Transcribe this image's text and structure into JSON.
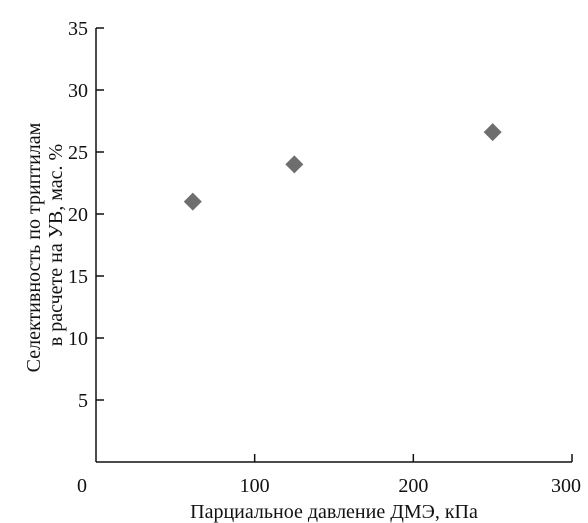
{
  "chart_data": {
    "type": "scatter",
    "title": "",
    "xlabel": "Парциальное давление ДМЭ, кПа",
    "ylabel_lines": [
      "Селективность по триптилам",
      "в расчете на УВ, мас. %"
    ],
    "xlim": [
      0,
      300
    ],
    "ylim": [
      0,
      35
    ],
    "x_ticks": [
      0,
      100,
      200,
      300
    ],
    "x_tick_labels": [
      "0",
      "100",
      "200",
      "300"
    ],
    "y_ticks": [
      5,
      10,
      15,
      20,
      25,
      30,
      35
    ],
    "y_tick_labels": [
      "5",
      "10",
      "15",
      "20",
      "25",
      "30",
      "35"
    ],
    "grid": false,
    "legend": "none",
    "marker": "diamond",
    "marker_color": "#6e6e6e",
    "series": [
      {
        "x": [
          61,
          125,
          250
        ],
        "y": [
          21,
          24,
          26.6
        ]
      }
    ]
  }
}
